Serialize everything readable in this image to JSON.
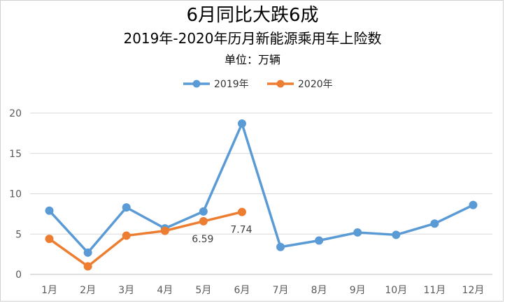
{
  "chart_data": {
    "type": "line",
    "title": "6月同比大跌6成",
    "subtitle": "2019年-2020年历月新能源乘用车上险数",
    "unit_label": "单位：万辆",
    "categories": [
      "1月",
      "2月",
      "3月",
      "4月",
      "5月",
      "6月",
      "7月",
      "8月",
      "9月",
      "10月",
      "11月",
      "12月"
    ],
    "ylim": [
      0,
      20
    ],
    "yticks": [
      0,
      5,
      10,
      15,
      20
    ],
    "grid": true,
    "legend_position": "top-center",
    "series": [
      {
        "name": "2019年",
        "color": "#5B9BD5",
        "values": [
          7.9,
          2.7,
          8.3,
          5.7,
          7.8,
          18.7,
          3.4,
          4.2,
          5.2,
          4.9,
          6.3,
          8.6
        ]
      },
      {
        "name": "2020年",
        "color": "#ED7D31",
        "values": [
          4.4,
          1.0,
          4.8,
          5.4,
          6.59,
          7.74,
          null,
          null,
          null,
          null,
          null,
          null
        ]
      }
    ],
    "data_labels": [
      {
        "series": 1,
        "index": 4,
        "text": "6.59"
      },
      {
        "series": 1,
        "index": 5,
        "text": "7.74"
      }
    ]
  }
}
